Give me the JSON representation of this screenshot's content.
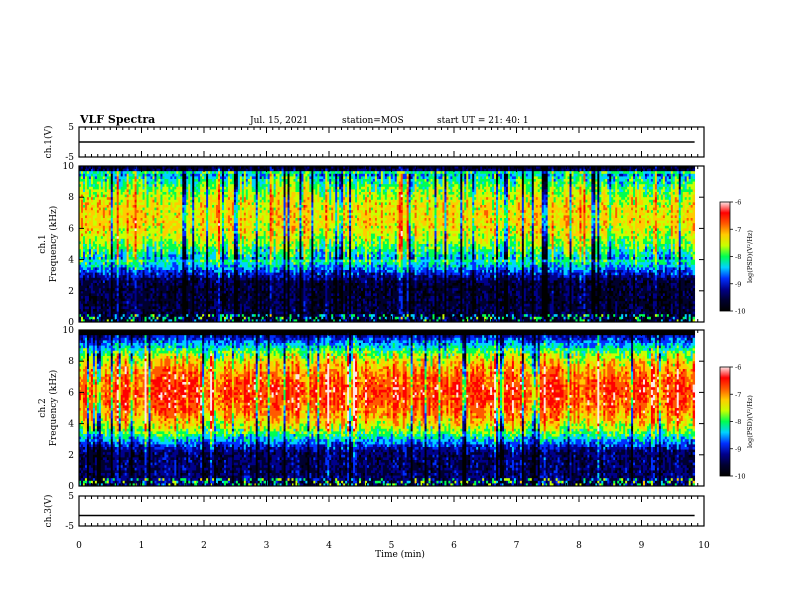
{
  "header": {
    "title": "VLF Spectra",
    "date": "Jul. 15, 2021",
    "station": "station=MOS",
    "start": "start UT =  21: 40: 1"
  },
  "colors": {
    "spectrogram": [
      "#000000",
      "#000030",
      "#00008c",
      "#0030ff",
      "#00d2ff",
      "#00ff50",
      "#c8ff00",
      "#ffcc00",
      "#ff5a00",
      "#ff0000",
      "#ffe6e6"
    ],
    "trace": "#000000"
  },
  "chart_data": [
    {
      "type": "line",
      "panel": "ch1-voltage",
      "ylabel": "ch.1(V)",
      "ylim": [
        -5,
        5
      ],
      "yticks": [
        "5",
        "-5"
      ],
      "xlim": [
        0,
        10
      ],
      "x": [
        0,
        2.5,
        5,
        7.5,
        9.85
      ],
      "y": [
        0,
        0,
        0,
        0,
        0
      ]
    },
    {
      "type": "heatmap",
      "panel": "ch1-spectrogram",
      "ylabel": "ch.1 Frequency (kHz)",
      "ylim": [
        0,
        10
      ],
      "yticks": [
        "0",
        "2",
        "4",
        "6",
        "8",
        "10"
      ],
      "xlim": [
        0,
        10
      ],
      "data_end_min": 9.85,
      "emission_band_khz": [
        4,
        9.5
      ],
      "emission_level": -7.3,
      "background_level": -9.6,
      "colorbar": {
        "label": "log(PSD)(V²/Hz)",
        "range": [
          -10,
          -6
        ],
        "ticks": [
          "-6",
          "-7",
          "-8",
          "-9",
          "-10"
        ]
      }
    },
    {
      "type": "heatmap",
      "panel": "ch2-spectrogram",
      "ylabel": "ch.2 Frequency (kHz)",
      "ylim": [
        0,
        10
      ],
      "yticks": [
        "0",
        "2",
        "4",
        "6",
        "8",
        "10"
      ],
      "xlim": [
        0,
        10
      ],
      "data_end_min": 9.85,
      "emission_band_khz": [
        3.5,
        8.5
      ],
      "emission_level": -6.6,
      "background_level": -9.4,
      "colorbar": {
        "label": "log(PSD)(V²/Hz)",
        "range": [
          -10,
          -6
        ],
        "ticks": [
          "-6",
          "-7",
          "-8",
          "-9",
          "-10"
        ]
      }
    },
    {
      "type": "line",
      "panel": "ch3-voltage",
      "ylabel": "ch.3(V)",
      "ylim": [
        -5,
        5
      ],
      "yticks": [
        "5",
        "-5"
      ],
      "xlim": [
        0,
        10
      ],
      "x": [
        0,
        2.5,
        5,
        7.5,
        9.85
      ],
      "y": [
        -1.5,
        -1.5,
        -1.5,
        -1.5,
        -1.5
      ]
    }
  ],
  "x_axis": {
    "label": "Time (min)",
    "ticks": [
      "0",
      "1",
      "2",
      "3",
      "4",
      "5",
      "6",
      "7",
      "8",
      "9",
      "10"
    ]
  }
}
